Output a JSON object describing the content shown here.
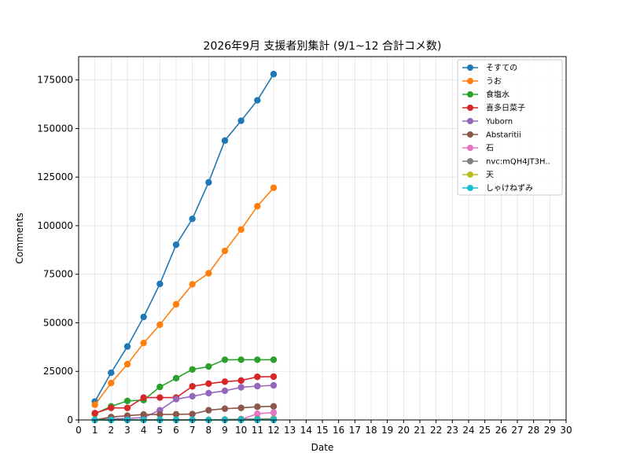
{
  "chart_data": {
    "type": "line",
    "title": "2026年9月 支援者別集計 (9/1~12 合計コメ数)",
    "xlabel": "Date",
    "ylabel": "Comments",
    "xlim": [
      0,
      30
    ],
    "ylim": [
      0,
      187000
    ],
    "xticks": [
      0,
      1,
      2,
      3,
      4,
      5,
      6,
      7,
      8,
      9,
      10,
      11,
      12,
      13,
      14,
      15,
      16,
      17,
      18,
      19,
      20,
      21,
      22,
      23,
      24,
      25,
      26,
      27,
      28,
      29,
      30
    ],
    "yticks": [
      0,
      25000,
      50000,
      75000,
      100000,
      125000,
      150000,
      175000
    ],
    "grid": true,
    "legend_position": "top-right",
    "x": [
      1,
      2,
      3,
      4,
      5,
      6,
      7,
      8,
      9,
      10,
      11,
      12
    ],
    "series": [
      {
        "name": "そすての",
        "color": "#1f77b4",
        "values": [
          9500,
          24300,
          37800,
          53000,
          70000,
          90200,
          103500,
          122300,
          143800,
          154000,
          164500,
          178000
        ]
      },
      {
        "name": "うお",
        "color": "#ff7f0e",
        "values": [
          7800,
          19000,
          28700,
          39600,
          49000,
          59500,
          69800,
          75500,
          87000,
          98000,
          110000,
          119500
        ]
      },
      {
        "name": "食塩水",
        "color": "#2ca02c",
        "values": [
          3200,
          7000,
          9800,
          10200,
          17000,
          21500,
          26000,
          27500,
          31000,
          31000,
          31000,
          31000
        ]
      },
      {
        "name": "喜多日菜子",
        "color": "#d62728",
        "values": [
          3500,
          6200,
          6200,
          11500,
          11500,
          11500,
          17300,
          18700,
          19700,
          20300,
          22200,
          22300
        ]
      },
      {
        "name": "Yuborn",
        "color": "#9467bd",
        "values": [
          0,
          500,
          800,
          1200,
          5000,
          10700,
          12200,
          13800,
          15000,
          16800,
          17400,
          17800
        ]
      },
      {
        "name": "Abstaritii",
        "color": "#8c564b",
        "values": [
          0,
          1500,
          2200,
          2800,
          2800,
          2900,
          3000,
          5000,
          5800,
          6200,
          6800,
          7000
        ]
      },
      {
        "name": "石",
        "color": "#e377c2",
        "values": [
          0,
          0,
          0,
          0,
          0,
          0,
          0,
          0,
          0,
          200,
          3200,
          3800
        ]
      },
      {
        "name": "nvc:mQH4JT3H..",
        "color": "#7f7f7f",
        "values": [
          0,
          0,
          0,
          0,
          0,
          0,
          0,
          0,
          200,
          400,
          500,
          600
        ]
      },
      {
        "name": "天",
        "color": "#bcbd22",
        "values": [
          0,
          0,
          0,
          0,
          0,
          0,
          0,
          0,
          0,
          0,
          0,
          200
        ]
      },
      {
        "name": "しゃけねずみ",
        "color": "#17becf",
        "values": [
          0,
          0,
          0,
          0,
          0,
          0,
          0,
          0,
          0,
          0,
          0,
          0
        ]
      }
    ]
  }
}
